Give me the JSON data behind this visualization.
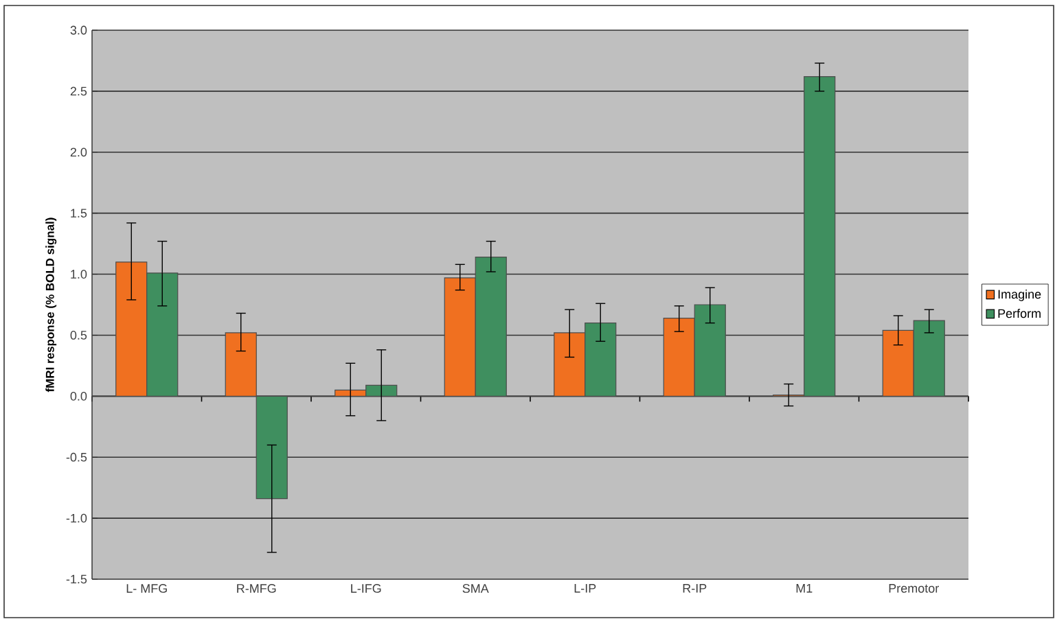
{
  "chart_data": {
    "type": "bar",
    "ylabel": "fMRI response (% BOLD signal)",
    "categories": [
      "L- MFG",
      "R-MFG",
      "L-IFG",
      "SMA",
      "L-IP",
      "R-IP",
      "M1",
      "Premotor"
    ],
    "series": [
      {
        "name": "Imagine",
        "color": "#f07020",
        "values": [
          1.1,
          0.52,
          0.05,
          0.97,
          0.52,
          0.64,
          0.01,
          0.54
        ],
        "errors": [
          [
            0.79,
            1.42
          ],
          [
            0.37,
            0.68
          ],
          [
            -0.16,
            0.27
          ],
          [
            0.87,
            1.08
          ],
          [
            0.32,
            0.71
          ],
          [
            0.53,
            0.74
          ],
          0.09,
          [
            0.42,
            0.66
          ]
        ]
      },
      {
        "name": "Perform",
        "color": "#3f8f5f",
        "values": [
          1.01,
          -0.84,
          0.09,
          1.14,
          0.6,
          0.75,
          2.62,
          0.62
        ],
        "errors": [
          [
            0.74,
            1.27
          ],
          [
            -1.28,
            -0.4
          ],
          [
            -0.2,
            0.38
          ],
          [
            1.02,
            1.27
          ],
          [
            0.45,
            0.76
          ],
          [
            0.6,
            0.89
          ],
          [
            2.5,
            2.73
          ],
          [
            0.52,
            0.71
          ]
        ]
      }
    ],
    "ylim": [
      -1.5,
      3.0
    ],
    "yticks": [
      {
        "value": -1.5,
        "label": "-1.5"
      },
      {
        "value": -1.0,
        "label": "-1.0"
      },
      {
        "value": -0.5,
        "label": "-0.5"
      },
      {
        "value": 0,
        "label": "0.0"
      },
      {
        "value": 0.5,
        "label": "0.5"
      },
      {
        "value": 1.0,
        "label": "1.0"
      },
      {
        "value": 1.5,
        "label": "1.5"
      },
      {
        "value": 2.0,
        "label": "2.0"
      },
      {
        "value": 2.5,
        "label": "2.5"
      },
      {
        "value": 3.0,
        "label": "3.0"
      }
    ],
    "grid": "y",
    "legend": "right"
  }
}
